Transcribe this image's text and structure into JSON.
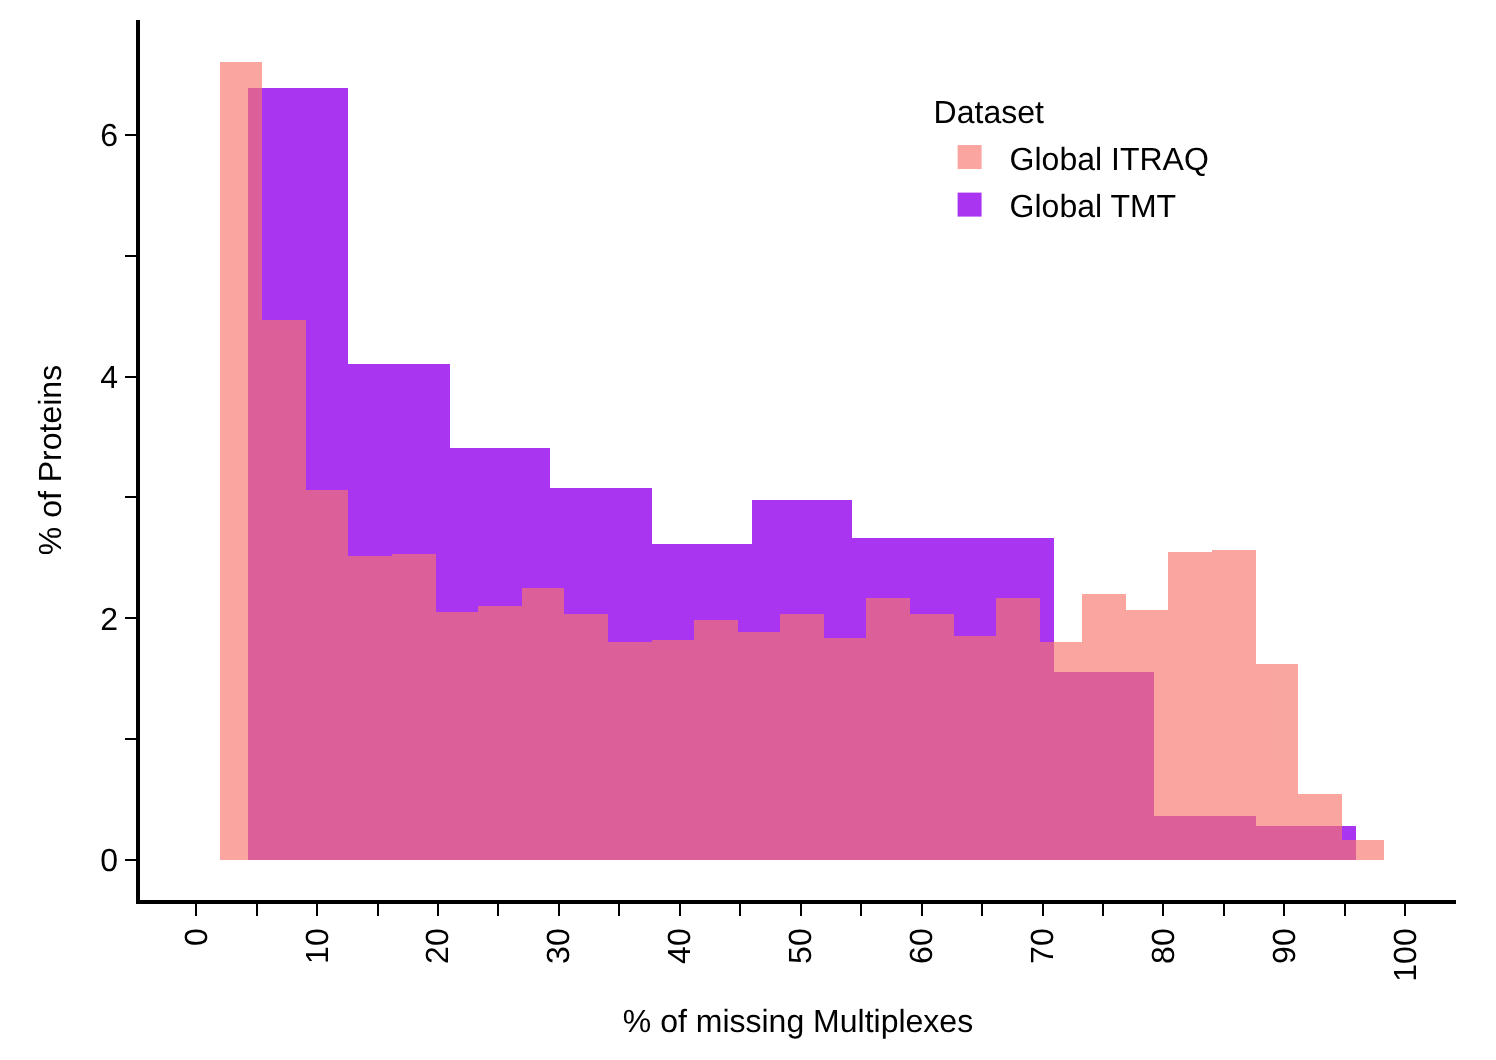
{
  "chart_data": {
    "type": "histogram",
    "xlabel": "% of missing Multiplexes",
    "ylabel": "% of Proteins",
    "legend_title": "Dataset",
    "legend": "top right",
    "bins": [
      1.92,
      4.3,
      5.49,
      9.06,
      12.63,
      16.2,
      19.77,
      20.96,
      23.34,
      26.91,
      29.29,
      30.48,
      34.05,
      37.62,
      41.19,
      44.76,
      45.95,
      48.33,
      51.9,
      54.28,
      55.47,
      59.04,
      62.61,
      66.18,
      69.75,
      70.94,
      73.32,
      76.89,
      79.27,
      80.46,
      84.03,
      87.6,
      91.17,
      94.74,
      95.93,
      98.31
    ],
    "xlim": [
      -4.65,
      104.2
    ],
    "ylim": [
      -0.33,
      6.95
    ],
    "xticks": [
      0,
      {
        "value": 5,
        "label": null
      },
      10,
      {
        "value": 15,
        "label": null
      },
      20,
      {
        "value": 25,
        "label": null
      },
      30,
      {
        "value": 35,
        "label": null
      },
      40,
      {
        "value": 45,
        "label": null
      },
      50,
      {
        "value": 55,
        "label": null
      },
      60,
      {
        "value": 65,
        "label": null
      },
      70,
      {
        "value": 75,
        "label": null
      },
      80,
      {
        "value": 85,
        "label": null
      },
      90,
      {
        "value": 95,
        "label": null
      },
      100
    ],
    "yticks": [
      0,
      {
        "value": 1,
        "label": null
      },
      2,
      {
        "value": 3,
        "label": null
      },
      4,
      {
        "value": 5,
        "label": null
      },
      6
    ],
    "series": [
      {
        "name": "Global TMT",
        "color": "#a020f0",
        "values": [
          null,
          6.38,
          6.38,
          6.38,
          4.1,
          4.1,
          4.1,
          3.41,
          3.41,
          3.41,
          3.08,
          3.08,
          3.08,
          2.62,
          2.62,
          2.62,
          2.98,
          2.98,
          2.98,
          2.67,
          2.67,
          2.67,
          2.67,
          2.67,
          2.67,
          1.55,
          1.55,
          1.55,
          0.37,
          0.37,
          0.37,
          0.28,
          0.28,
          0.28,
          null
        ]
      },
      {
        "name": "Global ITRAQ",
        "color": "#f8766d",
        "values": [
          6.6,
          6.6,
          4.47,
          3.07,
          2.52,
          2.53,
          2.05,
          2.05,
          2.1,
          2.25,
          2.25,
          2.03,
          1.8,
          1.82,
          1.98,
          1.88,
          1.88,
          2.03,
          1.83,
          1.83,
          2.17,
          2.03,
          1.85,
          2.17,
          1.8,
          1.8,
          2.2,
          2.07,
          2.07,
          2.55,
          2.57,
          1.62,
          0.55,
          0.17,
          0.17
        ]
      }
    ]
  }
}
